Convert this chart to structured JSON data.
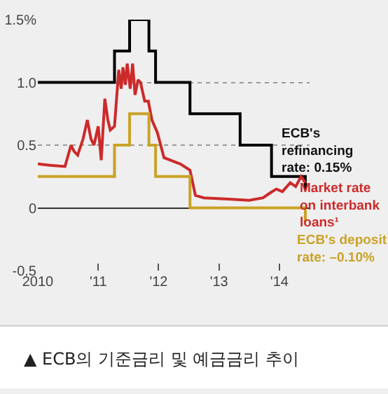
{
  "chart_data": {
    "type": "step",
    "annotations": [
      "▲ ECB의 기준금리 및 예금금리 추이"
    ],
    "xlim": [
      2010,
      2014.5
    ],
    "xticks": [
      {
        "value": 2010,
        "label": "2010"
      },
      {
        "value": 2011,
        "label": "'11"
      },
      {
        "value": 2012,
        "label": "'12"
      },
      {
        "value": 2013,
        "label": "'13"
      },
      {
        "value": 2014,
        "label": "'14"
      }
    ],
    "ylim": [
      -0.5,
      1.5
    ],
    "yticks": [
      {
        "value": -0.5,
        "label": "-0.5"
      },
      0,
      {
        "value": 0.5,
        "label": "0.5"
      },
      {
        "value": 1,
        "label": "1.0"
      },
      {
        "value": 1.5,
        "label": "1.5%"
      }
    ],
    "grid": "y",
    "legend": false,
    "marker": "none",
    "series": [
      {
        "name": "ECB's refinancing rate: 0.15%",
        "color": "#000000",
        "x": [
          2010,
          2011.27,
          2011.52,
          2011.84,
          2011.95,
          2012.52,
          2013.35,
          2013.87,
          2014.43,
          2014.45
        ],
        "values": [
          1,
          1.25,
          1.5,
          1.25,
          1,
          0.75,
          0.5,
          0.25,
          0.15,
          0.15
        ]
      },
      {
        "name": "Market rate on interbank loans¹",
        "type": "line",
        "color": "#cc2a2a",
        "x": [
          2010,
          2010.2,
          2010.45,
          2010.55,
          2010.6,
          2010.66,
          2010.75,
          2010.82,
          2010.88,
          2010.93,
          2011,
          2011.05,
          2011.11,
          2011.16,
          2011.2,
          2011.27,
          2011.34,
          2011.38,
          2011.41,
          2011.45,
          2011.48,
          2011.53,
          2011.57,
          2011.61,
          2011.66,
          2011.7,
          2011.77,
          2011.83,
          2011.89,
          2011.98,
          2012.09,
          2012.36,
          2012.52,
          2012.61,
          2012.75,
          2013.16,
          2013.5,
          2013.73,
          2013.85,
          2013.95,
          2014.05,
          2014.18,
          2014.27,
          2014.36,
          2014.43
        ],
        "values": [
          0.35,
          0.34,
          0.33,
          0.5,
          0.45,
          0.42,
          0.55,
          0.7,
          0.55,
          0.5,
          0.65,
          0.38,
          0.87,
          0.7,
          0.62,
          0.65,
          1.1,
          0.95,
          1.12,
          0.98,
          1.15,
          0.95,
          1.15,
          0.9,
          1.02,
          1,
          0.85,
          0.85,
          0.7,
          0.6,
          0.4,
          0.35,
          0.3,
          0.1,
          0.08,
          0.07,
          0.06,
          0.08,
          0.12,
          0.15,
          0.13,
          0.2,
          0.17,
          0.25,
          0.2
        ]
      },
      {
        "name": "ECB's deposit rate: –0.10%",
        "color": "#c9a227",
        "x": [
          2010,
          2011.27,
          2011.52,
          2011.84,
          2011.95,
          2012.52,
          2014.43,
          2014.45
        ],
        "values": [
          0.25,
          0.5,
          0.75,
          0.5,
          0.25,
          0,
          -0.1,
          -0.1
        ]
      }
    ]
  }
}
